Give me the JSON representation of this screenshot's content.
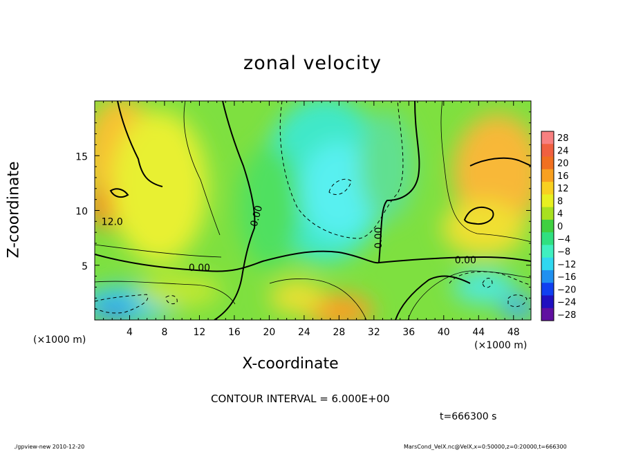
{
  "chart_data": {
    "type": "heatmap",
    "title": "zonal velocity",
    "xlabel": "X-coordinate",
    "ylabel": "Z-coordinate",
    "x_unit_left": "(×1000 m)",
    "x_unit_right": "(×1000 m)",
    "xlim": [
      0,
      50
    ],
    "ylim": [
      0,
      20
    ],
    "x_ticks": [
      4,
      8,
      12,
      16,
      20,
      24,
      28,
      32,
      36,
      40,
      44,
      48
    ],
    "y_ticks": [
      5,
      10,
      15
    ],
    "contour_labels": [
      {
        "text": "12.0",
        "x": 2,
        "z": 9
      },
      {
        "text": "0.00",
        "x": 12,
        "z": 4.8
      },
      {
        "text": "0.00",
        "x": 18.5,
        "z": 9.5,
        "rotate": 75
      },
      {
        "text": "0.00",
        "x": 32.5,
        "z": 7.5,
        "rotate": 90
      },
      {
        "text": "0.00",
        "x": 42.5,
        "z": 5.5
      }
    ],
    "colorbar": {
      "levels": [
        28,
        24,
        20,
        16,
        12,
        8,
        4,
        0,
        -4,
        -8,
        -12,
        -16,
        -20,
        -24,
        -28
      ],
      "colors": [
        "#f88080",
        "#f06040",
        "#f07020",
        "#f8a020",
        "#f8d020",
        "#e8f020",
        "#a8e020",
        "#40d040",
        "#30e080",
        "#40f0c0",
        "#30d8f0",
        "#2090f0",
        "#1040f0",
        "#2010c0",
        "#6010a0"
      ]
    },
    "contour_interval_text": "CONTOUR INTERVAL = 6.000E+00",
    "time_text": "t=666300 s",
    "footer_left": "./gpview-new  2010-12-20",
    "footer_right": "MarsCond_VelX.nc@VelX,x=0:50000,z=0:20000,t=666300"
  }
}
